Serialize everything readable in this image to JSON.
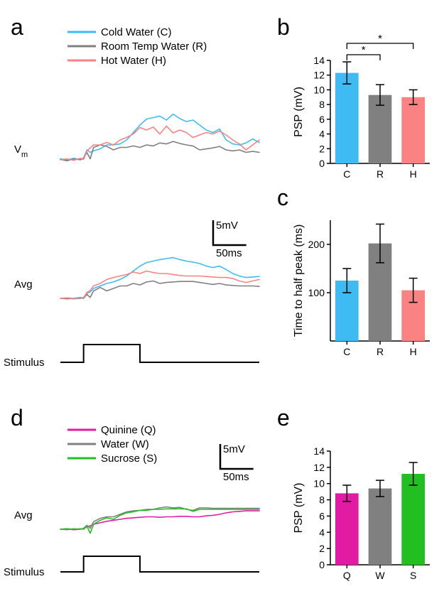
{
  "panels": {
    "a": {
      "label": "a"
    },
    "b": {
      "label": "b"
    },
    "c": {
      "label": "c"
    },
    "d": {
      "label": "d"
    },
    "e": {
      "label": "e"
    }
  },
  "colors": {
    "cold": "#3fbbf4",
    "room": "#808080",
    "hot": "#fa8282",
    "quinine": "#e21ba3",
    "water": "#808080",
    "sucrose": "#22be22",
    "axis": "#000000",
    "figure_bg": "#ffffff"
  },
  "trace_legend_a": [
    {
      "key": "cold",
      "label": "Cold Water (C)"
    },
    {
      "key": "room",
      "label": "Room Temp Water (R)"
    },
    {
      "key": "hot",
      "label": "Hot Water (H)"
    }
  ],
  "trace_legend_d": [
    {
      "key": "quinine",
      "label": "Quinine (Q)"
    },
    {
      "key": "water",
      "label": "Water (W)"
    },
    {
      "key": "sucrose",
      "label": "Sucrose (S)"
    }
  ],
  "row_labels": {
    "vm": "V",
    "vm_sub": "m",
    "avg": "Avg",
    "stimulus": "Stimulus"
  },
  "scalebar": {
    "v_label": "5mV",
    "t_label": "50ms"
  },
  "panel_b": {
    "title": "b",
    "ylabel": "PSP (mV)",
    "ylim": [
      0,
      14
    ],
    "ytick_step": 2,
    "categories": [
      "C",
      "R",
      "H"
    ],
    "values": [
      12.3,
      9.3,
      9.0
    ],
    "err": [
      1.5,
      1.4,
      1.0
    ],
    "bar_colors": [
      "#3fbbf4",
      "#808080",
      "#fa8282"
    ],
    "bar_width": 0.7,
    "sig_marks": [
      {
        "from": 0,
        "to": 1,
        "symbol": "*"
      },
      {
        "from": 0,
        "to": 2,
        "symbol": "*"
      }
    ]
  },
  "panel_c": {
    "ylabel": "Time to half peak (ms)",
    "ylim": [
      0,
      250
    ],
    "yticks": [
      100,
      200
    ],
    "categories": [
      "C",
      "R",
      "H"
    ],
    "values": [
      125,
      202,
      105
    ],
    "err": [
      25,
      40,
      25
    ],
    "bar_colors": [
      "#3fbbf4",
      "#808080",
      "#fa8282"
    ],
    "bar_width": 0.7
  },
  "panel_e": {
    "ylabel": "PSP (mV)",
    "ylim": [
      0,
      14
    ],
    "ytick_step": 2,
    "categories": [
      "Q",
      "W",
      "S"
    ],
    "values": [
      8.8,
      9.4,
      11.2
    ],
    "err": [
      1.0,
      1.0,
      1.4
    ],
    "bar_colors": [
      "#e21ba3",
      "#808080",
      "#22be22"
    ],
    "bar_width": 0.7
  },
  "traces_a_vm": {
    "x_ms": [
      0,
      10,
      20,
      30,
      35,
      40,
      45,
      50,
      60,
      70,
      80,
      90,
      100,
      110,
      120,
      130,
      140,
      150,
      160,
      170,
      180,
      190,
      200,
      210,
      220,
      230,
      240,
      250,
      260,
      270,
      280,
      290,
      300
    ],
    "series": {
      "cold": [
        0.2,
        0.0,
        0.3,
        0.1,
        0.4,
        2.0,
        1.5,
        1.8,
        2.2,
        3.0,
        3.0,
        3.2,
        4.0,
        5.5,
        7.0,
        8.2,
        8.5,
        8.8,
        8.0,
        9.2,
        8.3,
        7.7,
        8.0,
        7.0,
        6.0,
        5.5,
        6.2,
        4.0,
        3.2,
        3.0,
        3.4,
        4.2,
        3.5
      ],
      "room": [
        0.1,
        -0.2,
        0.2,
        0.0,
        0.3,
        1.5,
        0.2,
        2.5,
        3.0,
        2.7,
        2.0,
        2.5,
        2.5,
        2.8,
        2.5,
        3.0,
        2.8,
        3.4,
        3.2,
        3.7,
        3.3,
        3.0,
        2.8,
        2.0,
        2.2,
        2.4,
        2.7,
        2.0,
        1.8,
        2.0,
        1.5,
        1.7,
        1.5
      ],
      "hot": [
        0.0,
        0.2,
        -0.1,
        0.3,
        0.1,
        1.8,
        2.4,
        3.0,
        3.0,
        3.5,
        3.0,
        4.0,
        4.5,
        5.2,
        6.5,
        6.0,
        6.6,
        5.2,
        6.8,
        5.4,
        6.0,
        5.5,
        4.5,
        5.0,
        5.5,
        5.2,
        5.8,
        5.0,
        4.0,
        3.2,
        2.0,
        3.0,
        4.0
      ]
    }
  },
  "traces_a_avg": {
    "x_ms": [
      0,
      10,
      20,
      30,
      35,
      40,
      45,
      50,
      60,
      70,
      80,
      90,
      100,
      110,
      120,
      130,
      140,
      150,
      160,
      170,
      180,
      190,
      200,
      210,
      220,
      230,
      240,
      250,
      260,
      270,
      280,
      290,
      300
    ],
    "series": {
      "cold": [
        0.0,
        0.1,
        -0.1,
        0.0,
        0.2,
        1.0,
        1.3,
        2.0,
        2.5,
        3.0,
        3.3,
        3.8,
        4.5,
        5.5,
        6.5,
        7.2,
        7.5,
        7.8,
        8.0,
        8.2,
        7.8,
        7.5,
        7.3,
        7.0,
        6.5,
        6.2,
        6.5,
        5.8,
        5.0,
        4.5,
        4.2,
        4.3,
        4.4
      ],
      "room": [
        0.0,
        -0.1,
        0.0,
        0.1,
        0.0,
        0.8,
        0.2,
        1.5,
        2.2,
        1.5,
        2.0,
        2.5,
        2.5,
        3.0,
        2.7,
        3.3,
        3.5,
        3.0,
        3.2,
        3.3,
        3.4,
        3.4,
        3.4,
        3.2,
        3.0,
        2.8,
        3.0,
        2.7,
        2.6,
        2.5,
        2.5,
        2.5,
        2.4
      ],
      "hot": [
        0.0,
        0.1,
        0.0,
        0.2,
        0.1,
        1.2,
        1.6,
        2.5,
        3.0,
        3.8,
        4.2,
        4.5,
        4.8,
        5.3,
        5.0,
        5.5,
        5.2,
        5.0,
        5.0,
        4.8,
        4.6,
        4.5,
        4.5,
        4.5,
        4.4,
        4.3,
        4.2,
        4.2,
        4.0,
        3.5,
        3.2,
        3.5,
        3.8
      ]
    }
  },
  "traces_d_avg": {
    "x_ms": [
      0,
      10,
      20,
      30,
      35,
      40,
      45,
      50,
      60,
      70,
      80,
      90,
      100,
      110,
      120,
      130,
      140,
      150,
      160,
      170,
      180,
      190,
      200,
      210,
      220,
      230,
      240,
      250,
      260,
      270,
      280,
      290,
      300
    ],
    "series": {
      "quinine": [
        0.0,
        0.1,
        -0.1,
        0.0,
        0.1,
        0.5,
        0.7,
        1.0,
        1.3,
        1.6,
        1.8,
        2.0,
        2.2,
        2.3,
        2.4,
        2.5,
        2.5,
        2.4,
        2.5,
        2.5,
        2.6,
        2.6,
        2.5,
        2.5,
        2.7,
        2.8,
        3.0,
        3.3,
        3.5,
        3.6,
        3.7,
        3.7,
        3.7
      ],
      "water": [
        0.0,
        -0.1,
        0.1,
        0.0,
        0.2,
        0.8,
        0.2,
        1.5,
        2.2,
        2.5,
        2.5,
        3.0,
        3.5,
        3.7,
        3.8,
        4.0,
        4.0,
        4.3,
        4.5,
        4.3,
        4.4,
        4.0,
        3.8,
        4.3,
        4.3,
        4.2,
        4.2,
        4.2,
        4.2,
        4.2,
        4.2,
        4.2,
        4.2
      ],
      "sucrose": [
        0.0,
        0.1,
        0.0,
        0.1,
        0.0,
        0.6,
        -0.8,
        1.0,
        1.8,
        2.3,
        2.0,
        2.8,
        3.3,
        3.5,
        3.8,
        3.8,
        4.0,
        4.0,
        4.1,
        4.1,
        4.1,
        4.1,
        3.6,
        4.0,
        4.0,
        4.0,
        4.0,
        4.0,
        4.0,
        4.0,
        4.0,
        4.0,
        4.0
      ]
    }
  },
  "stimulus": {
    "onset_ms": 35,
    "offset_ms": 120,
    "end_ms": 300,
    "height": 5
  },
  "typography": {
    "panel_label_fontsize": 32,
    "axis_label_fontsize": 16,
    "tick_fontsize": 14,
    "legend_fontsize": 15
  }
}
